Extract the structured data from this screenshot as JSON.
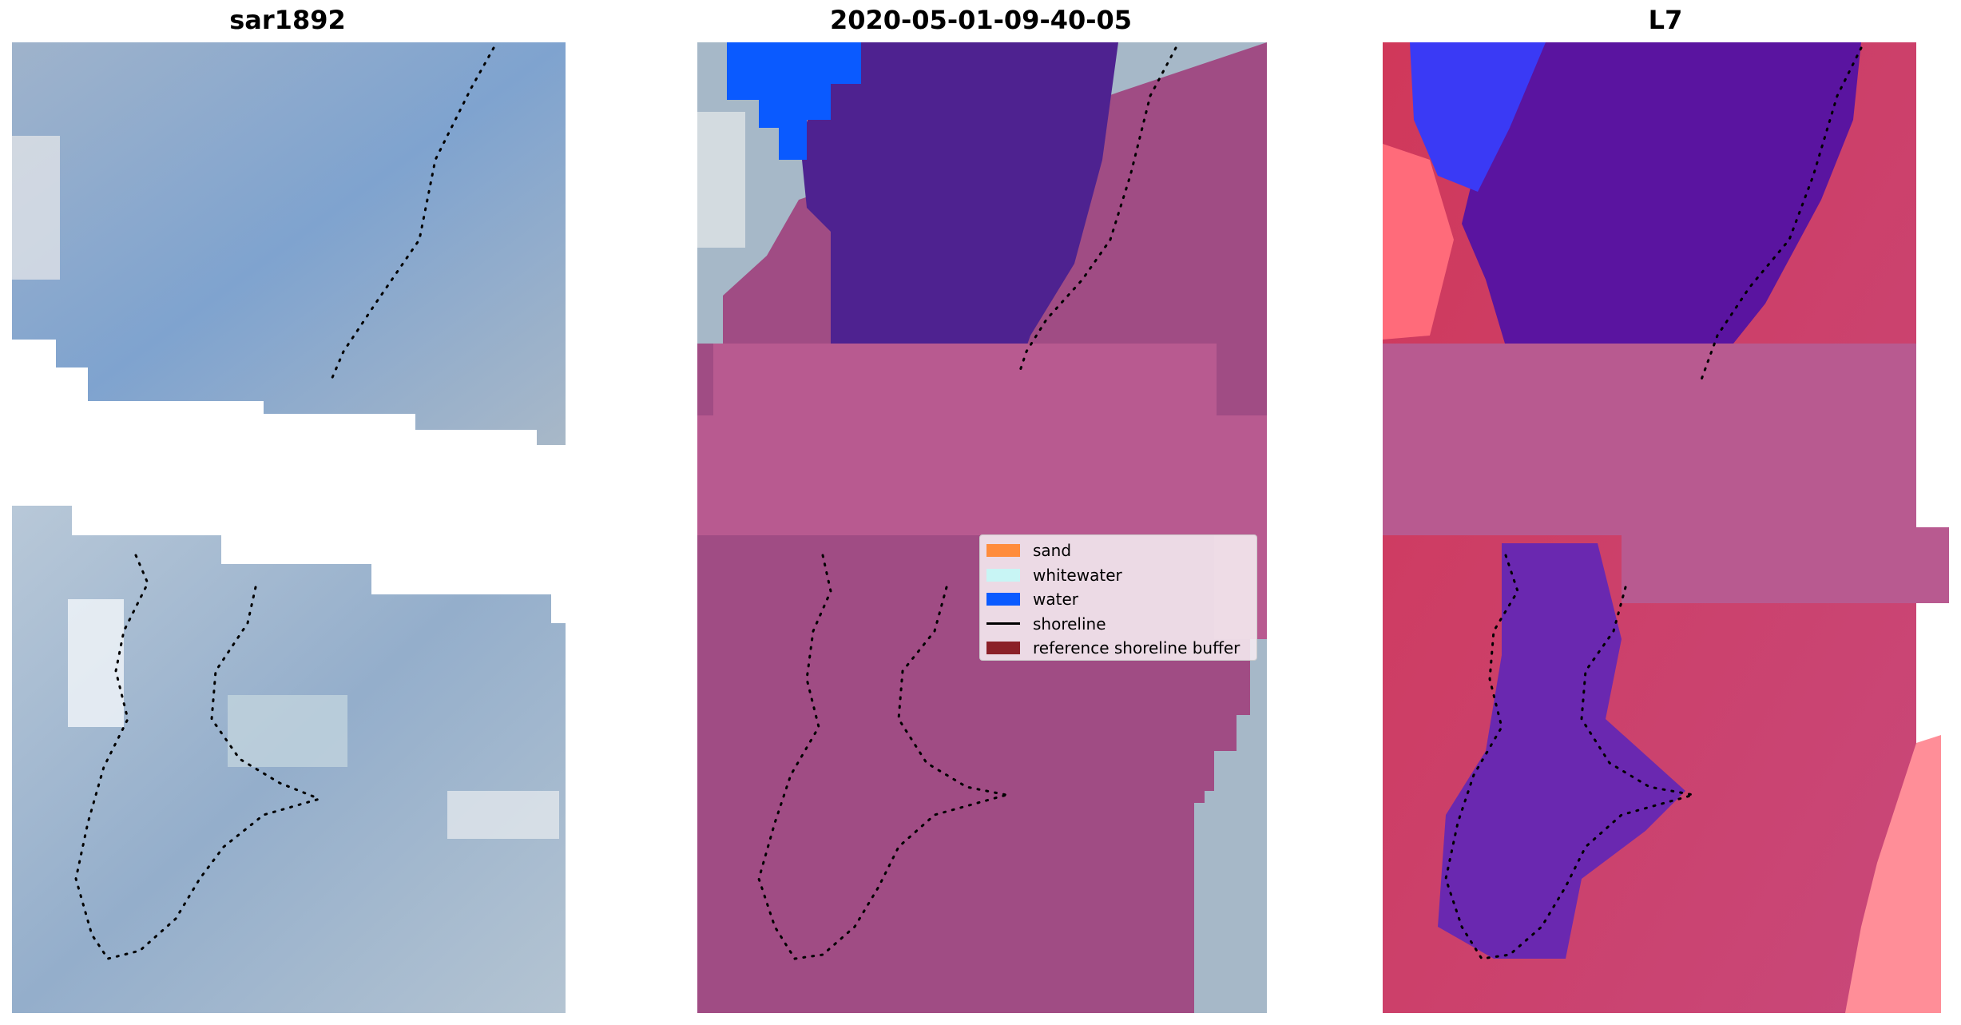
{
  "panels": [
    {
      "title": "sar1892"
    },
    {
      "title": "2020-05-01-09-40-05"
    },
    {
      "title": "L7"
    }
  ],
  "legend": {
    "items": [
      {
        "label": "sand",
        "kind": "patch",
        "color": "#ff8c3c"
      },
      {
        "label": "whitewater",
        "kind": "patch",
        "color": "#c8f5f5"
      },
      {
        "label": "water",
        "kind": "patch",
        "color": "#0a5aff"
      },
      {
        "label": "shoreline",
        "kind": "line",
        "color": "#000000"
      },
      {
        "label": "reference shoreline buffer",
        "kind": "patch",
        "color": "#8b2028"
      }
    ]
  },
  "colors": {
    "rgb_blue": "#8ea7c6",
    "buffer_magenta": "#b85a90",
    "classified_water_purple": "#4e2290",
    "classified_water_blue": "#0a5aff",
    "l7_red": "#d0385a",
    "l7_purple": "#5a14a0"
  }
}
